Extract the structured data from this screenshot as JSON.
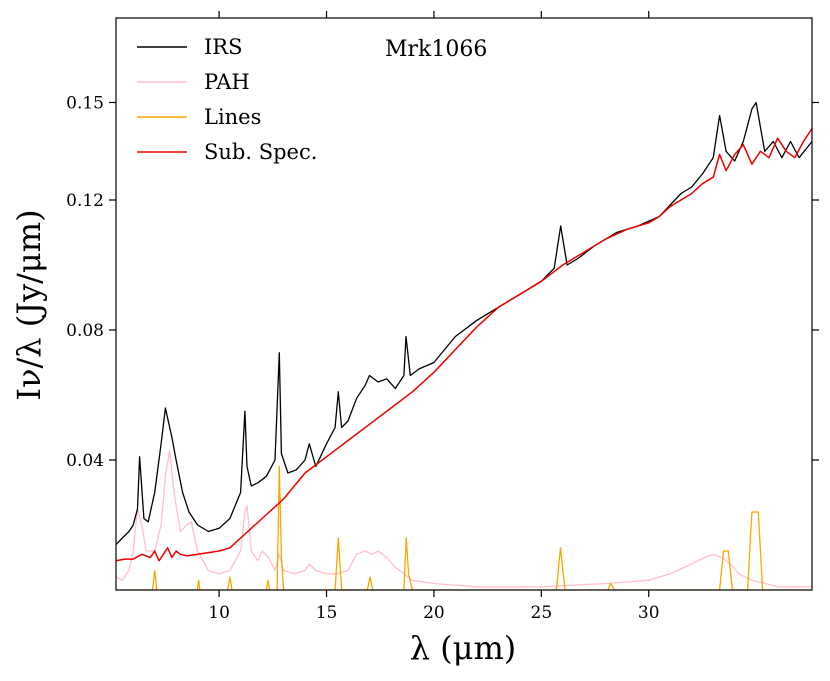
{
  "chart_data": {
    "type": "line",
    "title": "Mrk1066",
    "xlabel": "λ (μm)",
    "ylabel": "Iν/λ (Jy/μm)",
    "xlim": [
      5.2,
      37.6
    ],
    "ylim": [
      0.0,
      0.176
    ],
    "xticks": [
      10,
      15,
      20,
      25,
      30
    ],
    "xtick_labels": [
      "10",
      "15",
      "20",
      "25",
      "30"
    ],
    "yticks": [
      0.04,
      0.08,
      0.12,
      0.15
    ],
    "ytick_labels": [
      "0.04",
      "0.08",
      "0.12",
      "0.15"
    ],
    "legend_position": "top-left",
    "series": [
      {
        "name": "IRS",
        "color": "#000000",
        "x": [
          5.2,
          5.5,
          5.8,
          6.0,
          6.2,
          6.3,
          6.5,
          6.7,
          7.0,
          7.3,
          7.5,
          7.7,
          7.8,
          8.0,
          8.3,
          8.6,
          9.0,
          9.5,
          10.0,
          10.5,
          11.0,
          11.2,
          11.3,
          11.5,
          11.8,
          12.2,
          12.6,
          12.8,
          12.9,
          13.2,
          13.6,
          14.0,
          14.2,
          14.5,
          15.0,
          15.4,
          15.55,
          15.7,
          16.0,
          16.4,
          16.8,
          17.0,
          17.4,
          17.8,
          18.2,
          18.6,
          18.7,
          18.9,
          19.3,
          20.0,
          21.0,
          22.0,
          23.0,
          24.0,
          25.0,
          25.6,
          25.9,
          26.2,
          26.7,
          27.5,
          28.5,
          29.5,
          30.5,
          31.5,
          32.0,
          32.5,
          33.0,
          33.3,
          33.6,
          34.0,
          34.4,
          34.8,
          35.0,
          35.4,
          35.8,
          36.2,
          36.6,
          37.0,
          37.6
        ],
        "y": [
          0.014,
          0.016,
          0.018,
          0.02,
          0.025,
          0.041,
          0.022,
          0.021,
          0.03,
          0.045,
          0.056,
          0.05,
          0.047,
          0.04,
          0.03,
          0.024,
          0.02,
          0.018,
          0.019,
          0.022,
          0.03,
          0.055,
          0.038,
          0.032,
          0.033,
          0.035,
          0.04,
          0.073,
          0.042,
          0.036,
          0.037,
          0.04,
          0.045,
          0.038,
          0.045,
          0.05,
          0.061,
          0.05,
          0.052,
          0.059,
          0.063,
          0.066,
          0.064,
          0.065,
          0.062,
          0.066,
          0.078,
          0.066,
          0.068,
          0.07,
          0.078,
          0.083,
          0.087,
          0.091,
          0.095,
          0.099,
          0.112,
          0.1,
          0.102,
          0.106,
          0.11,
          0.112,
          0.115,
          0.122,
          0.124,
          0.128,
          0.133,
          0.146,
          0.135,
          0.132,
          0.138,
          0.148,
          0.15,
          0.135,
          0.138,
          0.133,
          0.138,
          0.133,
          0.138
        ]
      },
      {
        "name": "PAH",
        "color": "#ffc0cb",
        "x": [
          5.2,
          5.5,
          5.8,
          6.0,
          6.2,
          6.4,
          6.6,
          7.0,
          7.3,
          7.5,
          7.7,
          7.9,
          8.2,
          8.5,
          8.7,
          9.0,
          9.5,
          10.0,
          10.5,
          11.0,
          11.2,
          11.3,
          11.5,
          11.8,
          12.0,
          12.3,
          12.6,
          12.8,
          13.0,
          13.5,
          14.0,
          14.2,
          14.5,
          15.0,
          15.5,
          16.0,
          16.4,
          16.8,
          17.1,
          17.4,
          17.8,
          18.2,
          18.6,
          19.0,
          20.0,
          22.0,
          25.0,
          28.0,
          30.0,
          31.0,
          32.0,
          32.6,
          33.0,
          33.4,
          33.8,
          34.2,
          34.8,
          35.4,
          36.0,
          37.6
        ],
        "y": [
          0.004,
          0.003,
          0.006,
          0.012,
          0.025,
          0.02,
          0.012,
          0.012,
          0.02,
          0.035,
          0.043,
          0.03,
          0.018,
          0.02,
          0.021,
          0.012,
          0.006,
          0.005,
          0.006,
          0.012,
          0.024,
          0.026,
          0.012,
          0.009,
          0.012,
          0.01,
          0.006,
          0.011,
          0.006,
          0.005,
          0.006,
          0.008,
          0.006,
          0.005,
          0.005,
          0.006,
          0.011,
          0.012,
          0.011,
          0.012,
          0.01,
          0.007,
          0.005,
          0.003,
          0.002,
          0.001,
          0.001,
          0.002,
          0.003,
          0.005,
          0.008,
          0.01,
          0.011,
          0.01,
          0.008,
          0.005,
          0.003,
          0.002,
          0.001,
          0.001
        ]
      },
      {
        "name": "Lines",
        "color": "#ffa500",
        "x": [
          5.2,
          6.9,
          7.0,
          7.1,
          7.2,
          8.0,
          8.99,
          9.05,
          9.1,
          10.4,
          10.5,
          10.6,
          12.2,
          12.28,
          12.35,
          12.7,
          12.8,
          12.9,
          13.0,
          15.4,
          15.55,
          15.7,
          16.9,
          17.03,
          17.15,
          18.6,
          18.71,
          18.82,
          19.0,
          25.7,
          25.89,
          26.1,
          28.1,
          28.22,
          28.4,
          33.3,
          33.48,
          33.7,
          33.9,
          34.6,
          34.8,
          35.1,
          35.3,
          37.6
        ],
        "y": [
          0.0,
          0.0,
          0.006,
          0.0,
          0.0,
          0.0,
          0.0,
          0.003,
          0.0,
          0.0,
          0.004,
          0.0,
          0.0,
          0.003,
          0.0,
          0.0,
          0.038,
          0.01,
          0.0,
          0.0,
          0.016,
          0.0,
          0.0,
          0.004,
          0.0,
          0.0,
          0.016,
          0.005,
          0.0,
          0.0,
          0.013,
          0.0,
          0.0,
          0.002,
          0.0,
          0.0,
          0.012,
          0.012,
          0.0,
          0.0,
          0.024,
          0.024,
          0.0,
          0.0
        ]
      },
      {
        "name": "Sub. Spec.",
        "color": "#ee0000",
        "x": [
          5.2,
          5.6,
          6.0,
          6.4,
          6.8,
          7.0,
          7.2,
          7.4,
          7.6,
          7.8,
          8.0,
          8.2,
          8.5,
          9.0,
          9.5,
          10.0,
          10.5,
          11.0,
          11.5,
          12.0,
          12.5,
          13.0,
          13.5,
          14.0,
          15.0,
          16.0,
          17.0,
          18.0,
          19.0,
          20.0,
          21.0,
          22.0,
          23.0,
          24.0,
          25.0,
          26.0,
          27.0,
          28.0,
          29.0,
          30.0,
          30.5,
          31.0,
          31.5,
          32.0,
          32.5,
          33.0,
          33.3,
          33.6,
          34.0,
          34.4,
          34.8,
          35.2,
          35.6,
          36.0,
          36.4,
          36.8,
          37.2,
          37.6
        ],
        "y": [
          0.009,
          0.0095,
          0.0095,
          0.011,
          0.01,
          0.012,
          0.009,
          0.011,
          0.013,
          0.01,
          0.012,
          0.011,
          0.0105,
          0.011,
          0.0115,
          0.012,
          0.013,
          0.016,
          0.019,
          0.022,
          0.025,
          0.028,
          0.032,
          0.036,
          0.041,
          0.046,
          0.051,
          0.056,
          0.061,
          0.067,
          0.074,
          0.081,
          0.087,
          0.091,
          0.095,
          0.1,
          0.104,
          0.108,
          0.111,
          0.113,
          0.115,
          0.118,
          0.12,
          0.122,
          0.125,
          0.127,
          0.134,
          0.129,
          0.134,
          0.137,
          0.131,
          0.135,
          0.133,
          0.139,
          0.135,
          0.133,
          0.138,
          0.142
        ]
      }
    ]
  }
}
